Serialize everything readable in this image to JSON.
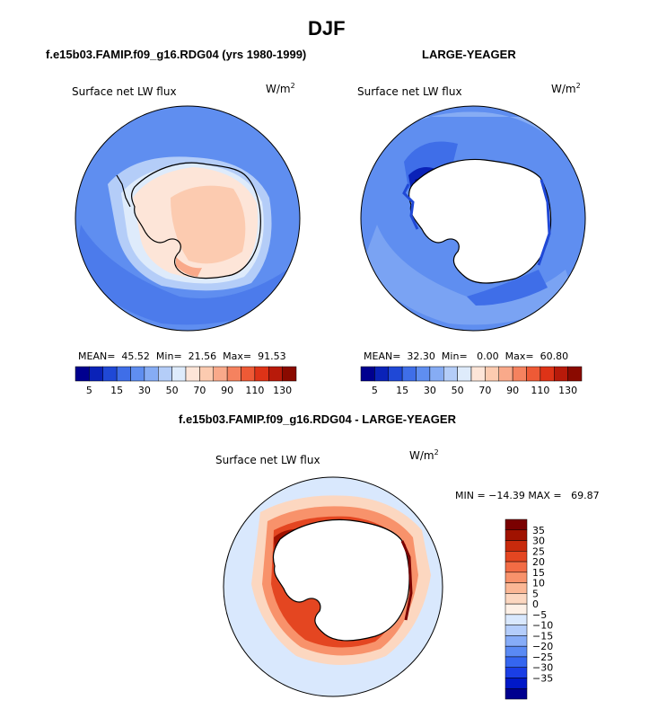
{
  "main_title": "DJF",
  "panels": [
    {
      "case_label": "f.e15b03.FAMIP.f09_g16.RDG04 (yrs 1980-1999)",
      "field": "Surface net LW flux",
      "units_base": "W/m",
      "units_exp": "2",
      "stats": {
        "mean_label": "MEAN=",
        "mean": "45.52",
        "min_label": "Min=",
        "min": "21.56",
        "max_label": "Max=",
        "max": "91.53"
      }
    },
    {
      "case_label": "LARGE-YEAGER",
      "field": "Surface net LW flux",
      "units_base": "W/m",
      "units_exp": "2",
      "stats": {
        "mean_label": "MEAN=",
        "mean": "32.30",
        "min_label": "Min=",
        "min": "0.00",
        "max_label": "Max=",
        "max": "60.80"
      }
    },
    {
      "case_label": "f.e15b03.FAMIP.f09_g16.RDG04 - LARGE-YEAGER",
      "field": "Surface net LW flux",
      "units_base": "W/m",
      "units_exp": "2",
      "minmax": "MIN = −14.39 MAX =   69.87"
    }
  ],
  "colorbar_abs": {
    "colors": [
      "#00008f",
      "#0a22b8",
      "#1f48d6",
      "#3f6ee8",
      "#5f8ef0",
      "#86acf4",
      "#b4cdf8",
      "#deebfb",
      "#fde5d8",
      "#fccbb0",
      "#f9a98a",
      "#f5825f",
      "#ee5a36",
      "#de3317",
      "#b81a0a",
      "#8a0a00"
    ],
    "tick_labels": [
      "5",
      "15",
      "30",
      "50",
      "70",
      "90",
      "110",
      "130"
    ]
  },
  "colorbar_diff": {
    "colors": [
      "#00008f",
      "#0018c8",
      "#1a3ee6",
      "#3566f0",
      "#5a8af4",
      "#86acf8",
      "#b4cdfb",
      "#d9e8fd",
      "#fdf0e6",
      "#fcd7c0",
      "#fbb795",
      "#f8926b",
      "#f26c45",
      "#e44621",
      "#c82a0c",
      "#a01200",
      "#7a0000"
    ],
    "tick_labels": [
      "35",
      "30",
      "25",
      "20",
      "15",
      "10",
      "5",
      "0",
      "−5",
      "−10",
      "−15",
      "−20",
      "−25",
      "−30",
      "−35"
    ]
  },
  "chart_data": [
    {
      "type": "heatmap",
      "title": "f.e15b03.FAMIP.f09_g16.RDG04 (yrs 1980-1999)",
      "variable": "Surface net LW flux",
      "units": "W/m^2",
      "season": "DJF",
      "projection": "south polar stereographic",
      "mean": 45.52,
      "min": 21.56,
      "max": 91.53,
      "contour_levels": [
        5,
        10,
        15,
        20,
        30,
        40,
        50,
        60,
        70,
        80,
        90,
        100,
        110,
        120,
        130
      ],
      "colorbar_ticks": [
        5,
        15,
        30,
        50,
        70,
        90,
        110,
        130
      ]
    },
    {
      "type": "heatmap",
      "title": "LARGE-YEAGER",
      "variable": "Surface net LW flux",
      "units": "W/m^2",
      "season": "DJF",
      "projection": "south polar stereographic",
      "mean": 32.3,
      "min": 0.0,
      "max": 60.8,
      "contour_levels": [
        5,
        10,
        15,
        20,
        30,
        40,
        50,
        60,
        70,
        80,
        90,
        100,
        110,
        120,
        130
      ],
      "colorbar_ticks": [
        5,
        15,
        30,
        50,
        70,
        90,
        110,
        130
      ]
    },
    {
      "type": "heatmap",
      "title": "f.e15b03.FAMIP.f09_g16.RDG04 - LARGE-YEAGER",
      "variable": "Surface net LW flux",
      "units": "W/m^2",
      "season": "DJF",
      "projection": "south polar stereographic",
      "min": -14.39,
      "max": 69.87,
      "contour_levels": [
        -35,
        -30,
        -25,
        -20,
        -15,
        -10,
        -5,
        0,
        5,
        10,
        15,
        20,
        25,
        30,
        35
      ],
      "colorbar_ticks": [
        35,
        30,
        25,
        20,
        15,
        10,
        5,
        0,
        -5,
        -10,
        -15,
        -20,
        -25,
        -30,
        -35
      ]
    }
  ]
}
